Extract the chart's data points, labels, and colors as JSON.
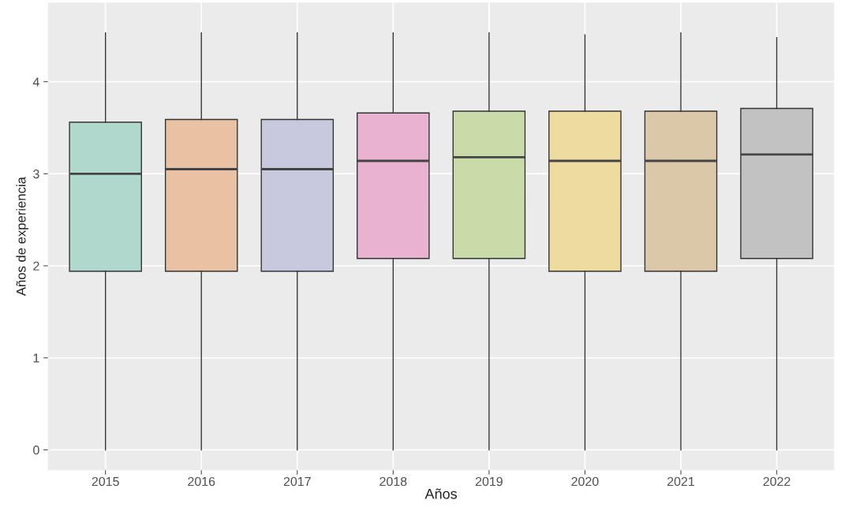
{
  "chart_data": {
    "type": "box",
    "xlabel": "Años",
    "ylabel": "Años de experiencia",
    "categories": [
      "2015",
      "2016",
      "2017",
      "2018",
      "2019",
      "2020",
      "2021",
      "2022"
    ],
    "colors": [
      "#b0d8cc",
      "#e9c2a4",
      "#c8c8de",
      "#e9b2d0",
      "#c8dba9",
      "#eedba0",
      "#dbc8a9",
      "#c2c2c2"
    ],
    "boxes": [
      {
        "low": 0,
        "q1": 1.94,
        "median": 3.0,
        "q3": 3.56,
        "high": 4.53
      },
      {
        "low": 0,
        "q1": 1.94,
        "median": 3.05,
        "q3": 3.59,
        "high": 4.53
      },
      {
        "low": 0,
        "q1": 1.94,
        "median": 3.05,
        "q3": 3.59,
        "high": 4.53
      },
      {
        "low": 0,
        "q1": 2.08,
        "median": 3.14,
        "q3": 3.66,
        "high": 4.53
      },
      {
        "low": 0,
        "q1": 2.08,
        "median": 3.18,
        "q3": 3.68,
        "high": 4.53
      },
      {
        "low": 0,
        "q1": 1.94,
        "median": 3.14,
        "q3": 3.68,
        "high": 4.51
      },
      {
        "low": 0,
        "q1": 1.94,
        "median": 3.14,
        "q3": 3.68,
        "high": 4.53
      },
      {
        "low": 0,
        "q1": 2.08,
        "median": 3.21,
        "q3": 3.71,
        "high": 4.48
      }
    ],
    "ylim": [
      -0.22,
      4.86
    ],
    "yticks": [
      0,
      1,
      2,
      3,
      4
    ],
    "grid": true
  }
}
